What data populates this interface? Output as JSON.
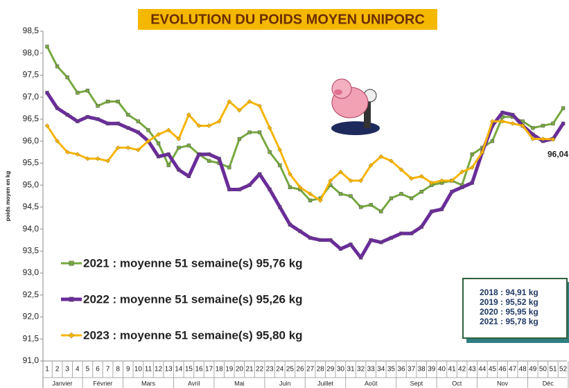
{
  "chart_data": {
    "type": "line",
    "title": "EVOLUTION DU POIDS MOYEN UNIPORC",
    "y_label": "poids moyen en kg",
    "categories": [
      "1",
      "2",
      "3",
      "4",
      "5",
      "6",
      "7",
      "8",
      "9",
      "10",
      "11",
      "12",
      "13",
      "14",
      "15",
      "16",
      "17",
      "18",
      "19",
      "20",
      "21",
      "22",
      "23",
      "24",
      "25",
      "26",
      "27",
      "28",
      "29",
      "30",
      "31",
      "32",
      "33",
      "34",
      "35",
      "36",
      "37",
      "38",
      "39",
      "40",
      "41",
      "42",
      "43",
      "44",
      "45",
      "46",
      "47",
      "48",
      "49",
      "50",
      "51",
      "52"
    ],
    "months": [
      "Janvier",
      "Février",
      "Mars",
      "Avril",
      "Mai",
      "Juin",
      "Juillet",
      "Août",
      "Sept",
      "Oct",
      "Nov",
      "Déc"
    ],
    "ylim": [
      91.0,
      98.5
    ],
    "yticks": [
      {
        "value": 91.0,
        "label": "91,0"
      },
      {
        "value": 91.5,
        "label": "91,5"
      },
      {
        "value": 92.0,
        "label": "92,0"
      },
      {
        "value": 92.5,
        "label": "92,5"
      },
      {
        "value": 93.0,
        "label": "93,0"
      },
      {
        "value": 93.5,
        "label": "93,5"
      },
      {
        "value": 94.0,
        "label": "94,0"
      },
      {
        "value": 94.5,
        "label": "94,5"
      },
      {
        "value": 95.0,
        "label": "95,0"
      },
      {
        "value": 95.5,
        "label": "95,5"
      },
      {
        "value": 96.0,
        "label": "96,0"
      },
      {
        "value": 96.5,
        "label": "96,5"
      },
      {
        "value": 97.0,
        "label": "97,0"
      },
      {
        "value": 97.5,
        "label": "97,5"
      },
      {
        "value": 98.0,
        "label": "98,0"
      },
      {
        "value": 98.5,
        "label": "98,5"
      }
    ],
    "grid": false,
    "series": [
      {
        "name": "2021 : moyenne 51 semaine(s) 95,76 kg",
        "color": "#77a83f",
        "marker": "square",
        "values": [
          98.15,
          97.7,
          97.45,
          97.1,
          97.15,
          96.8,
          96.9,
          96.9,
          96.6,
          96.45,
          96.25,
          95.95,
          95.45,
          95.85,
          95.9,
          95.7,
          95.55,
          95.5,
          95.4,
          96.05,
          96.2,
          96.2,
          95.75,
          95.45,
          94.95,
          94.9,
          94.65,
          94.7,
          95.0,
          94.8,
          94.75,
          94.5,
          94.55,
          94.4,
          94.7,
          94.8,
          94.7,
          94.85,
          95.0,
          95.05,
          95.1,
          95.0,
          95.7,
          95.85,
          96.0,
          96.55,
          96.55,
          96.45,
          96.3,
          96.35,
          96.4,
          96.75
        ]
      },
      {
        "name": "2022 : moyenne 51 semaine(s) 95,26 kg",
        "color": "#6a2c9a",
        "marker": "square",
        "values": [
          97.1,
          96.75,
          96.6,
          96.45,
          96.55,
          96.5,
          96.4,
          96.4,
          96.3,
          96.2,
          96.0,
          95.65,
          95.7,
          95.35,
          95.2,
          95.7,
          95.7,
          95.6,
          94.9,
          94.9,
          95.0,
          95.25,
          94.9,
          94.5,
          94.1,
          93.95,
          93.8,
          93.75,
          93.75,
          93.55,
          93.65,
          93.35,
          93.75,
          93.7,
          93.8,
          93.9,
          93.9,
          94.05,
          94.4,
          94.45,
          94.85,
          94.95,
          95.05,
          95.75,
          96.35,
          96.65,
          96.6,
          96.35,
          96.15,
          96.0,
          96.05,
          96.4
        ]
      },
      {
        "name": "2023 : moyenne 51 semaine(s) 95,80 kg",
        "color": "#f7b500",
        "marker": "diamond",
        "values": [
          96.35,
          96.0,
          95.75,
          95.7,
          95.6,
          95.6,
          95.55,
          95.85,
          95.85,
          95.8,
          96.0,
          96.15,
          96.25,
          96.05,
          96.6,
          96.35,
          96.35,
          96.45,
          96.9,
          96.7,
          96.9,
          96.8,
          96.3,
          95.8,
          95.25,
          94.95,
          94.8,
          94.65,
          95.1,
          95.3,
          95.1,
          95.1,
          95.45,
          95.65,
          95.55,
          95.35,
          95.15,
          95.2,
          95.05,
          95.1,
          95.1,
          95.3,
          95.4,
          95.75,
          96.45,
          96.45,
          96.4,
          96.35,
          96.05,
          96.05,
          96.04,
          null
        ]
      }
    ],
    "annotation": "96,04",
    "stats_box": [
      "2018 : 94,91 kg",
      "2019 : 95,52 kg",
      "2020 : 95,95 kg",
      "2021 : 95,78 kg"
    ]
  }
}
